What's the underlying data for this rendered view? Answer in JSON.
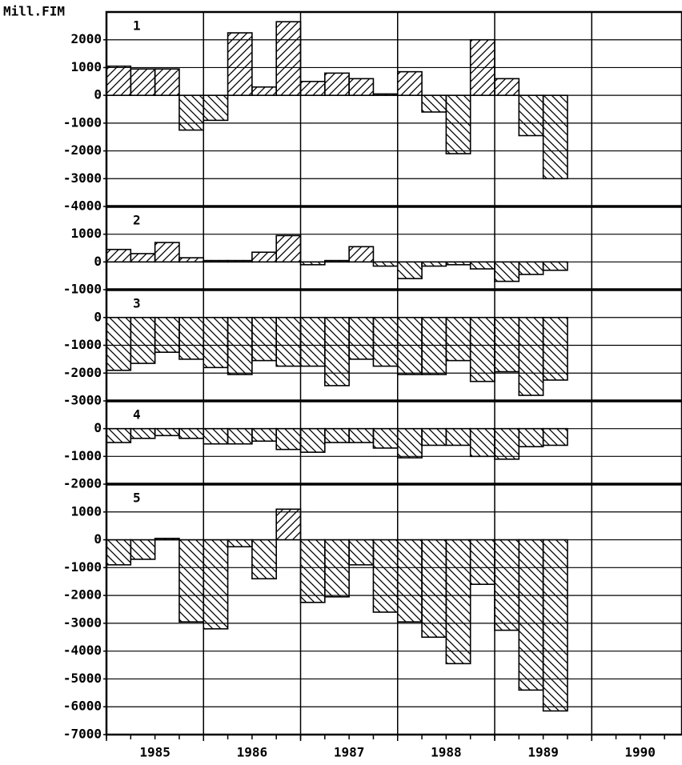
{
  "chart_data": [
    {
      "type": "bar",
      "ylabel": "Mill.FIM",
      "label": "1",
      "x": [
        1985,
        1985.25,
        1985.5,
        1985.75,
        1986,
        1986.25,
        1986.5,
        1986.75,
        1987,
        1987.25,
        1987.5,
        1987.75,
        1988,
        1988.25,
        1988.5,
        1988.75,
        1989,
        1989.25,
        1989.5
      ],
      "values": [
        1050,
        950,
        950,
        -1250,
        -900,
        2250,
        300,
        2650,
        500,
        800,
        600,
        50,
        850,
        -600,
        -2100,
        2000,
        600,
        -1450,
        -3000
      ],
      "ylim": [
        -4000,
        3000
      ],
      "yticks": [
        2000,
        1000,
        0,
        -1000,
        -2000,
        -3000,
        -4000
      ]
    },
    {
      "type": "bar",
      "label": "2",
      "x": [
        1985,
        1985.25,
        1985.5,
        1985.75,
        1986,
        1986.25,
        1986.5,
        1986.75,
        1987,
        1987.25,
        1987.5,
        1987.75,
        1988,
        1988.25,
        1988.5,
        1988.75,
        1989,
        1989.25,
        1989.5
      ],
      "values": [
        450,
        300,
        700,
        150,
        50,
        50,
        350,
        950,
        -100,
        50,
        550,
        -150,
        -600,
        -150,
        -100,
        -250,
        -700,
        -450,
        -300
      ],
      "ylim": [
        -1000,
        2000
      ],
      "yticks": [
        1000,
        0,
        -1000
      ]
    },
    {
      "type": "bar",
      "label": "3",
      "x": [
        1985,
        1985.25,
        1985.5,
        1985.75,
        1986,
        1986.25,
        1986.5,
        1986.75,
        1987,
        1987.25,
        1987.5,
        1987.75,
        1988,
        1988.25,
        1988.5,
        1988.75,
        1989,
        1989.25,
        1989.5
      ],
      "values": [
        -1900,
        -1650,
        -1250,
        -1500,
        -1800,
        -2050,
        -1550,
        -1750,
        -1750,
        -2450,
        -1500,
        -1750,
        -2050,
        -2050,
        -1550,
        -2300,
        -1950,
        -2800,
        -2250
      ],
      "ylim": [
        -3000,
        1000
      ],
      "yticks": [
        0,
        -1000,
        -2000,
        -3000
      ]
    },
    {
      "type": "bar",
      "label": "4",
      "x": [
        1985,
        1985.25,
        1985.5,
        1985.75,
        1986,
        1986.25,
        1986.5,
        1986.75,
        1987,
        1987.25,
        1987.5,
        1987.75,
        1988,
        1988.25,
        1988.5,
        1988.75,
        1989,
        1989.25,
        1989.5
      ],
      "values": [
        -500,
        -350,
        -250,
        -350,
        -550,
        -550,
        -450,
        -750,
        -850,
        -500,
        -500,
        -700,
        -1050,
        -600,
        -600,
        -1000,
        -1100,
        -650,
        -600
      ],
      "ylim": [
        -2000,
        1000
      ],
      "yticks": [
        0,
        -1000,
        -2000
      ]
    },
    {
      "type": "bar",
      "label": "5",
      "x": [
        1985,
        1985.25,
        1985.5,
        1985.75,
        1986,
        1986.25,
        1986.5,
        1986.75,
        1987,
        1987.25,
        1987.5,
        1987.75,
        1988,
        1988.25,
        1988.5,
        1988.75,
        1989,
        1989.25,
        1989.5
      ],
      "values": [
        -900,
        -700,
        50,
        -2950,
        -3200,
        -250,
        -1400,
        1100,
        -2250,
        -2050,
        -900,
        -2600,
        -2950,
        -3500,
        -4450,
        -1600,
        -3250,
        -5400,
        -6150
      ],
      "ylim": [
        -7000,
        2000
      ],
      "yticks": [
        1000,
        0,
        -1000,
        -2000,
        -3000,
        -4000,
        -5000,
        -6000,
        -7000
      ],
      "xlim": [
        1985,
        1990.93
      ],
      "xticks": [
        1985,
        1986,
        1987,
        1988,
        1989,
        1990
      ]
    }
  ]
}
